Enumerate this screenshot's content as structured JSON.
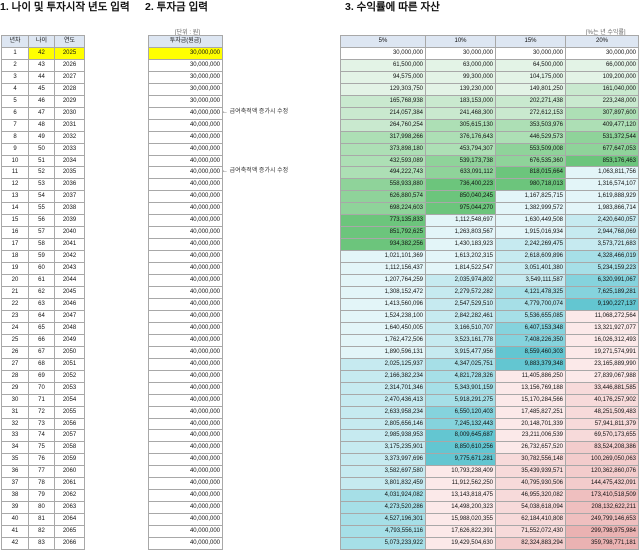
{
  "sections": {
    "s1": "1. 나이 및 투자시작 년도 입력",
    "s2": "2. 투자금 입력",
    "s3": "3. 수익률에 따른 자산"
  },
  "units": {
    "investment": "[단위 : 원]",
    "rate": "[%는 년 수익률]"
  },
  "table1": {
    "headers": [
      "년차",
      "나이",
      "연도"
    ],
    "rows": [
      [
        "1",
        "42",
        "2025"
      ],
      [
        "2",
        "43",
        "2026"
      ],
      [
        "3",
        "44",
        "2027"
      ],
      [
        "4",
        "45",
        "2028"
      ],
      [
        "5",
        "46",
        "2029"
      ],
      [
        "6",
        "47",
        "2030"
      ],
      [
        "7",
        "48",
        "2031"
      ],
      [
        "8",
        "49",
        "2032"
      ],
      [
        "9",
        "50",
        "2033"
      ],
      [
        "10",
        "51",
        "2034"
      ],
      [
        "11",
        "52",
        "2035"
      ],
      [
        "12",
        "53",
        "2036"
      ],
      [
        "13",
        "54",
        "2037"
      ],
      [
        "14",
        "55",
        "2038"
      ],
      [
        "15",
        "56",
        "2039"
      ],
      [
        "16",
        "57",
        "2040"
      ],
      [
        "17",
        "58",
        "2041"
      ],
      [
        "18",
        "59",
        "2042"
      ],
      [
        "19",
        "60",
        "2043"
      ],
      [
        "20",
        "61",
        "2044"
      ],
      [
        "21",
        "62",
        "2045"
      ],
      [
        "22",
        "63",
        "2046"
      ],
      [
        "23",
        "64",
        "2047"
      ],
      [
        "24",
        "65",
        "2048"
      ],
      [
        "25",
        "66",
        "2049"
      ],
      [
        "26",
        "67",
        "2050"
      ],
      [
        "27",
        "68",
        "2051"
      ],
      [
        "28",
        "69",
        "2052"
      ],
      [
        "29",
        "70",
        "2053"
      ],
      [
        "30",
        "71",
        "2054"
      ],
      [
        "31",
        "72",
        "2055"
      ],
      [
        "32",
        "73",
        "2056"
      ],
      [
        "33",
        "74",
        "2057"
      ],
      [
        "34",
        "75",
        "2058"
      ],
      [
        "35",
        "76",
        "2059"
      ],
      [
        "36",
        "77",
        "2060"
      ],
      [
        "37",
        "78",
        "2061"
      ],
      [
        "38",
        "79",
        "2062"
      ],
      [
        "39",
        "80",
        "2063"
      ],
      [
        "40",
        "81",
        "2064"
      ],
      [
        "41",
        "82",
        "2065"
      ],
      [
        "42",
        "83",
        "2066"
      ]
    ]
  },
  "table2": {
    "header": "투자금(원금)",
    "values": [
      "30,000,000",
      "30,000,000",
      "30,000,000",
      "30,000,000",
      "30,000,000",
      "40,000,000",
      "40,000,000",
      "40,000,000",
      "40,000,000",
      "40,000,000",
      "40,000,000",
      "40,000,000",
      "40,000,000",
      "40,000,000",
      "40,000,000",
      "40,000,000",
      "40,000,000",
      "40,000,000",
      "40,000,000",
      "40,000,000",
      "40,000,000",
      "40,000,000",
      "40,000,000",
      "40,000,000",
      "40,000,000",
      "40,000,000",
      "40,000,000",
      "40,000,000",
      "40,000,000",
      "40,000,000",
      "40,000,000",
      "40,000,000",
      "40,000,000",
      "40,000,000",
      "40,000,000",
      "40,000,000",
      "40,000,000",
      "40,000,000",
      "40,000,000",
      "40,000,000",
      "40,000,000",
      "40,000,000"
    ],
    "notes": [
      {
        "row": 6,
        "text": "← 급여축적액 증가시 수정"
      },
      {
        "row": 11,
        "text": "← 급여축적액 증가시 수정"
      }
    ]
  },
  "table3": {
    "headers": [
      "5%",
      "10%",
      "15%",
      "20%"
    ],
    "palette": {
      "green": [
        "#e3f3e6",
        "#c9e9cf",
        "#addfb5",
        "#8fd39a",
        "#6cc57c"
      ],
      "teal": [
        "#e3f5f8",
        "#c6eaf0",
        "#a6dfe7",
        "#85d3dd",
        "#63c6d1"
      ],
      "pink": [
        "#fbe9e9",
        "#f7dada",
        "#f3cccc",
        "#efbfbf",
        "#eab2b2"
      ]
    },
    "rows": [
      [
        "30,000,000",
        "30,000,000",
        "30,000,000",
        "30,000,000"
      ],
      [
        "61,500,000",
        "63,000,000",
        "64,500,000",
        "66,000,000"
      ],
      [
        "94,575,000",
        "99,300,000",
        "104,175,000",
        "109,200,000"
      ],
      [
        "129,303,750",
        "139,230,000",
        "149,801,250",
        "161,040,000"
      ],
      [
        "165,768,938",
        "183,153,000",
        "202,271,438",
        "223,248,000"
      ],
      [
        "214,057,384",
        "241,468,300",
        "272,612,153",
        "307,897,600"
      ],
      [
        "264,760,254",
        "305,615,130",
        "353,503,976",
        "409,477,120"
      ],
      [
        "317,998,266",
        "376,176,643",
        "446,529,573",
        "531,372,544"
      ],
      [
        "373,898,180",
        "453,794,307",
        "553,509,008",
        "677,647,053"
      ],
      [
        "432,593,089",
        "539,173,738",
        "676,535,360",
        "853,176,463"
      ],
      [
        "494,222,743",
        "633,091,112",
        "818,015,664",
        "1,063,811,756"
      ],
      [
        "558,933,880",
        "736,400,223",
        "980,718,013",
        "1,316,574,107"
      ],
      [
        "626,880,574",
        "850,040,245",
        "1,167,825,715",
        "1,619,888,929"
      ],
      [
        "698,224,603",
        "975,044,270",
        "1,382,999,572",
        "1,983,866,714"
      ],
      [
        "773,135,833",
        "1,112,548,697",
        "1,630,449,508",
        "2,420,640,057"
      ],
      [
        "851,792,625",
        "1,263,803,567",
        "1,915,016,934",
        "2,944,768,069"
      ],
      [
        "934,382,256",
        "1,430,183,923",
        "2,242,269,475",
        "3,573,721,683"
      ],
      [
        "1,021,101,369",
        "1,613,202,315",
        "2,618,609,896",
        "4,328,466,019"
      ],
      [
        "1,112,156,437",
        "1,814,522,547",
        "3,051,401,380",
        "5,234,159,223"
      ],
      [
        "1,207,764,259",
        "2,035,974,802",
        "3,549,111,587",
        "6,320,991,067"
      ],
      [
        "1,308,152,472",
        "2,279,572,282",
        "4,121,478,325",
        "7,625,189,281"
      ],
      [
        "1,413,560,096",
        "2,547,529,510",
        "4,779,700,074",
        "9,190,227,137"
      ],
      [
        "1,524,238,100",
        "2,842,282,461",
        "5,536,655,085",
        "11,068,272,564"
      ],
      [
        "1,640,450,005",
        "3,166,510,707",
        "6,407,153,348",
        "13,321,927,077"
      ],
      [
        "1,762,472,506",
        "3,523,161,778",
        "7,408,226,350",
        "16,026,312,493"
      ],
      [
        "1,890,596,131",
        "3,915,477,956",
        "8,559,460,303",
        "19,271,574,991"
      ],
      [
        "2,025,125,937",
        "4,347,025,751",
        "9,883,379,348",
        "23,165,889,990"
      ],
      [
        "2,166,382,234",
        "4,821,728,326",
        "11,405,886,250",
        "27,839,067,988"
      ],
      [
        "2,314,701,346",
        "5,343,901,159",
        "13,156,769,188",
        "33,446,881,585"
      ],
      [
        "2,470,436,413",
        "5,918,291,275",
        "15,170,284,566",
        "40,176,257,902"
      ],
      [
        "2,633,958,234",
        "6,550,120,403",
        "17,485,827,251",
        "48,251,509,483"
      ],
      [
        "2,805,656,146",
        "7,245,132,443",
        "20,148,701,339",
        "57,941,811,379"
      ],
      [
        "2,985,938,953",
        "8,009,645,687",
        "23,211,006,539",
        "69,570,173,655"
      ],
      [
        "3,175,235,901",
        "8,850,610,256",
        "26,732,657,520",
        "83,524,208,386"
      ],
      [
        "3,373,997,696",
        "9,775,671,281",
        "30,782,556,148",
        "100,269,050,063"
      ],
      [
        "3,582,697,580",
        "10,793,238,409",
        "35,439,939,571",
        "120,362,860,076"
      ],
      [
        "3,801,832,459",
        "11,912,562,250",
        "40,795,930,506",
        "144,475,432,091"
      ],
      [
        "4,031,924,082",
        "13,143,818,475",
        "46,955,320,082",
        "173,410,518,509"
      ],
      [
        "4,273,520,286",
        "14,498,200,323",
        "54,038,618,094",
        "208,132,622,211"
      ],
      [
        "4,527,196,301",
        "15,988,020,355",
        "62,184,410,808",
        "249,799,146,653"
      ],
      [
        "4,793,556,116",
        "17,626,822,391",
        "71,552,072,430",
        "299,798,975,984"
      ],
      [
        "5,073,233,922",
        "19,429,504,630",
        "82,324,883,294",
        "359,798,771,181"
      ]
    ]
  }
}
